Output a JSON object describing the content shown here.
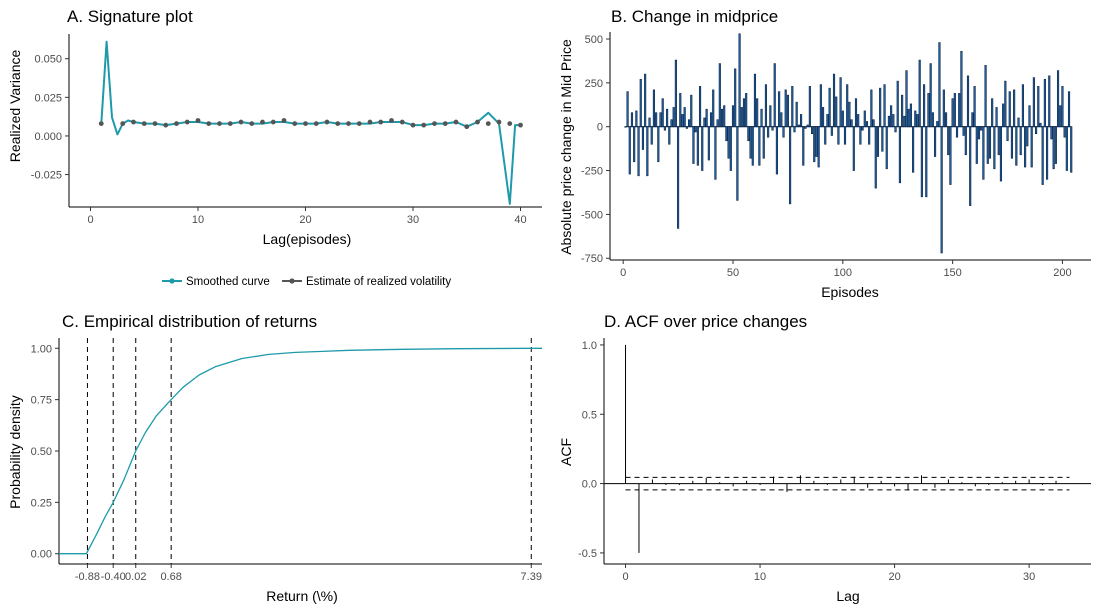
{
  "colors": {
    "teal": "#1E9AAA",
    "point": "#555555",
    "bar_fill": "#2166AC",
    "bar_stroke": "#0B2240",
    "ecdf": "#1E9AAA",
    "acf": "#000000"
  },
  "chart_data": [
    {
      "id": "A",
      "type": "line",
      "title": "A. Signature plot",
      "xlabel": "Lag(episodes)",
      "ylabel": "Realized Variance",
      "xlim": [
        -2,
        42
      ],
      "ylim": [
        -0.046,
        0.066
      ],
      "xticks": [
        0,
        10,
        20,
        30,
        40
      ],
      "yticks": [
        -0.025,
        0,
        0.025,
        0.05
      ],
      "ytick_labels": [
        "-0.025",
        "0.000",
        "0.025",
        "0.050"
      ],
      "xtick_labels": [
        "0",
        "10",
        "20",
        "30",
        "40"
      ],
      "legend_position": "bottom",
      "legend": [
        {
          "name": "Smoothed curve",
          "marker": "line-point-teal"
        },
        {
          "name": "Estimate of realized volatility",
          "marker": "line-point-grey"
        }
      ],
      "series": [
        {
          "name": "Smoothed curve",
          "x": [
            1,
            1.5,
            2,
            2.5,
            3,
            3.5,
            4,
            5,
            6,
            7,
            8,
            9,
            10,
            11,
            12,
            13,
            14,
            15,
            16,
            17,
            18,
            19,
            20,
            21,
            22,
            23,
            24,
            25,
            26,
            27,
            28,
            29,
            30,
            31,
            32,
            33,
            34,
            35,
            36,
            37,
            38,
            39,
            39.5,
            40
          ],
          "y": [
            0.008,
            0.061,
            0.012,
            0.001,
            0.008,
            0.01,
            0.009,
            0.008,
            0.008,
            0.007,
            0.008,
            0.009,
            0.009,
            0.008,
            0.008,
            0.008,
            0.009,
            0.008,
            0.008,
            0.009,
            0.009,
            0.008,
            0.008,
            0.008,
            0.009,
            0.008,
            0.008,
            0.008,
            0.008,
            0.009,
            0.009,
            0.009,
            0.007,
            0.007,
            0.008,
            0.008,
            0.009,
            0.006,
            0.009,
            0.015,
            0.008,
            -0.044,
            0.007,
            0.007
          ]
        },
        {
          "name": "Estimate of realized volatility",
          "x": [
            1,
            3,
            4,
            5,
            6,
            7,
            8,
            9,
            10,
            11,
            12,
            13,
            14,
            15,
            16,
            17,
            18,
            19,
            20,
            21,
            22,
            23,
            24,
            25,
            26,
            27,
            28,
            29,
            30,
            31,
            32,
            33,
            34,
            35,
            36,
            37,
            38,
            39,
            40
          ],
          "y": [
            0.008,
            0.008,
            0.009,
            0.008,
            0.008,
            0.007,
            0.008,
            0.009,
            0.01,
            0.008,
            0.008,
            0.008,
            0.009,
            0.008,
            0.009,
            0.009,
            0.01,
            0.008,
            0.008,
            0.008,
            0.009,
            0.008,
            0.008,
            0.008,
            0.009,
            0.009,
            0.01,
            0.009,
            0.007,
            0.007,
            0.008,
            0.008,
            0.009,
            0.006,
            0.009,
            0.008,
            0.009,
            0.008,
            0.007
          ]
        }
      ]
    },
    {
      "id": "B",
      "type": "bar",
      "title": "B. Change in midprice",
      "xlabel": "Episodes",
      "ylabel": "Absolute price change in Mid Price",
      "xlim": [
        -6,
        213
      ],
      "ylim": [
        -760,
        540
      ],
      "xticks": [
        0,
        50,
        100,
        150,
        200
      ],
      "xtick_labels": [
        "0",
        "50",
        "100",
        "150",
        "200"
      ],
      "yticks": [
        -750,
        -500,
        -250,
        0,
        250,
        500
      ],
      "ytick_labels": [
        "-750",
        "-500",
        "-250",
        "0",
        "250",
        "500"
      ],
      "x_start": 1,
      "values": [
        0,
        200,
        -270,
        80,
        -200,
        90,
        -280,
        270,
        -130,
        300,
        -280,
        50,
        -100,
        210,
        80,
        -200,
        80,
        160,
        -20,
        100,
        -100,
        40,
        110,
        380,
        -580,
        190,
        70,
        110,
        -10,
        40,
        180,
        -210,
        -30,
        -220,
        230,
        -250,
        50,
        100,
        -190,
        80,
        210,
        -300,
        40,
        360,
        100,
        120,
        -80,
        -180,
        -250,
        120,
        330,
        -420,
        530,
        110,
        160,
        190,
        -80,
        -180,
        -220,
        300,
        160,
        -220,
        100,
        -180,
        240,
        -60,
        120,
        -20,
        360,
        -270,
        200,
        80,
        -60,
        210,
        180,
        -440,
        230,
        -30,
        140,
        10,
        70,
        -220,
        -10,
        10,
        230,
        -40,
        -200,
        -170,
        -230,
        240,
        110,
        -100,
        70,
        220,
        -50,
        300,
        170,
        -100,
        280,
        90,
        -100,
        240,
        140,
        40,
        -250,
        160,
        70,
        -100,
        -20,
        90,
        30,
        -100,
        210,
        40,
        -350,
        -170,
        220,
        -140,
        240,
        -240,
        60,
        120,
        70,
        -30,
        260,
        -320,
        180,
        60,
        320,
        100,
        130,
        -260,
        90,
        70,
        380,
        -400,
        240,
        -400,
        190,
        360,
        80,
        -170,
        30,
        480,
        -720,
        210,
        80,
        -160,
        -330,
        160,
        190,
        -60,
        190,
        430,
        -50,
        -160,
        290,
        -450,
        80,
        230,
        -210,
        -70,
        -20,
        -300,
        350,
        -210,
        -180,
        160,
        -240,
        110,
        -160,
        -310,
        130,
        260,
        -80,
        200,
        -180,
        210,
        -220,
        50,
        -160,
        240,
        -230,
        -110,
        120,
        -230,
        280,
        -40,
        230,
        20,
        -330,
        270,
        -300,
        290,
        -70,
        -240,
        -210,
        320,
        120,
        230,
        -60,
        -250,
        200,
        -260
      ]
    },
    {
      "id": "C",
      "type": "line",
      "title": "C. Empirical distribution of returns",
      "xlabel": "Return (\\%)",
      "ylabel": "Probability density",
      "xlim": [
        -1.41,
        7.59
      ],
      "ylim": [
        -0.05,
        1.05
      ],
      "xticks": [
        -0.88,
        -0.4,
        0.02,
        0.68,
        7.39
      ],
      "xtick_labels": [
        "-0.88",
        "-0.40",
        "0.02",
        "0.68",
        "7.39"
      ],
      "yticks": [
        0,
        0.25,
        0.5,
        0.75,
        1
      ],
      "ytick_labels": [
        "0.00",
        "0.25",
        "0.50",
        "0.75",
        "1.00"
      ],
      "vlines": [
        -0.88,
        -0.4,
        0.02,
        0.68,
        7.39
      ],
      "series": [
        {
          "name": "",
          "x": [
            -1.41,
            -0.9,
            -0.86,
            -0.7,
            -0.55,
            -0.4,
            -0.2,
            0.02,
            0.2,
            0.4,
            0.68,
            0.9,
            1.2,
            1.5,
            2.0,
            2.5,
            3.0,
            3.5,
            4.0,
            5.0,
            6.0,
            7.39,
            7.59
          ],
          "y": [
            0.0,
            0.0,
            0.02,
            0.1,
            0.18,
            0.25,
            0.36,
            0.5,
            0.59,
            0.67,
            0.75,
            0.81,
            0.87,
            0.91,
            0.95,
            0.97,
            0.98,
            0.985,
            0.99,
            0.995,
            0.998,
            1.0,
            1.0
          ]
        }
      ]
    },
    {
      "id": "D",
      "type": "bar",
      "title": "D. ACF over price changes",
      "xlabel": "Lag",
      "ylabel": "ACF",
      "xlim": [
        -1.6,
        34.6
      ],
      "ylim": [
        -0.58,
        1.05
      ],
      "xticks": [
        0,
        10,
        20,
        30
      ],
      "xtick_labels": [
        "0",
        "10",
        "20",
        "30"
      ],
      "yticks": [
        -0.5,
        0,
        0.5,
        1
      ],
      "ytick_labels": [
        "-0.5",
        "0.0",
        "0.5",
        "1.0"
      ],
      "conf_band": [
        -0.045,
        0.045
      ],
      "lags": [
        0,
        1,
        2,
        3,
        4,
        5,
        6,
        7,
        8,
        9,
        10,
        11,
        12,
        13,
        14,
        15,
        16,
        17,
        18,
        19,
        20,
        21,
        22,
        23,
        24,
        25,
        26,
        27,
        28,
        29,
        30,
        31,
        32,
        33
      ],
      "values": [
        1.0,
        -0.5,
        0.03,
        -0.01,
        -0.01,
        0.02,
        0.04,
        0.01,
        -0.02,
        0.02,
        -0.01,
        0.05,
        -0.06,
        0.06,
        0.02,
        -0.01,
        0.03,
        0.05,
        -0.03,
        0.02,
        -0.02,
        -0.05,
        0.06,
        -0.03,
        0.03,
        0.01,
        -0.02,
        -0.01,
        0.01,
        0.02,
        0.03,
        -0.01,
        0.02,
        0.0
      ]
    }
  ]
}
